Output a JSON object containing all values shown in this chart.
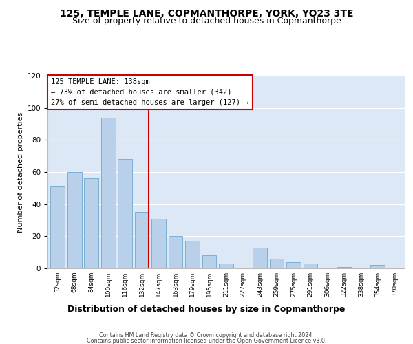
{
  "title": "125, TEMPLE LANE, COPMANTHORPE, YORK, YO23 3TE",
  "subtitle": "Size of property relative to detached houses in Copmanthorpe",
  "xlabel": "Distribution of detached houses by size in Copmanthorpe",
  "ylabel": "Number of detached properties",
  "bar_labels": [
    "52sqm",
    "68sqm",
    "84sqm",
    "100sqm",
    "116sqm",
    "132sqm",
    "147sqm",
    "163sqm",
    "179sqm",
    "195sqm",
    "211sqm",
    "227sqm",
    "243sqm",
    "259sqm",
    "275sqm",
    "291sqm",
    "306sqm",
    "322sqm",
    "338sqm",
    "354sqm",
    "370sqm"
  ],
  "bar_values": [
    51,
    60,
    56,
    94,
    68,
    35,
    31,
    20,
    17,
    8,
    3,
    0,
    13,
    6,
    4,
    3,
    0,
    1,
    0,
    2,
    0
  ],
  "bar_color": "#b8d0ea",
  "bar_edge_color": "#7aafd4",
  "background_color": "#dce8f5",
  "ylim": [
    0,
    120
  ],
  "yticks": [
    0,
    20,
    40,
    60,
    80,
    100,
    120
  ],
  "annotation_title": "125 TEMPLE LANE: 138sqm",
  "annotation_line1": "← 73% of detached houses are smaller (342)",
  "annotation_line2": "27% of semi-detached houses are larger (127) →",
  "marker_color": "#cc0000",
  "footer_line1": "Contains HM Land Registry data © Crown copyright and database right 2024.",
  "footer_line2": "Contains public sector information licensed under the Open Government Licence v3.0.",
  "title_fontsize": 10,
  "subtitle_fontsize": 9,
  "xlabel_fontsize": 9,
  "ylabel_fontsize": 8
}
